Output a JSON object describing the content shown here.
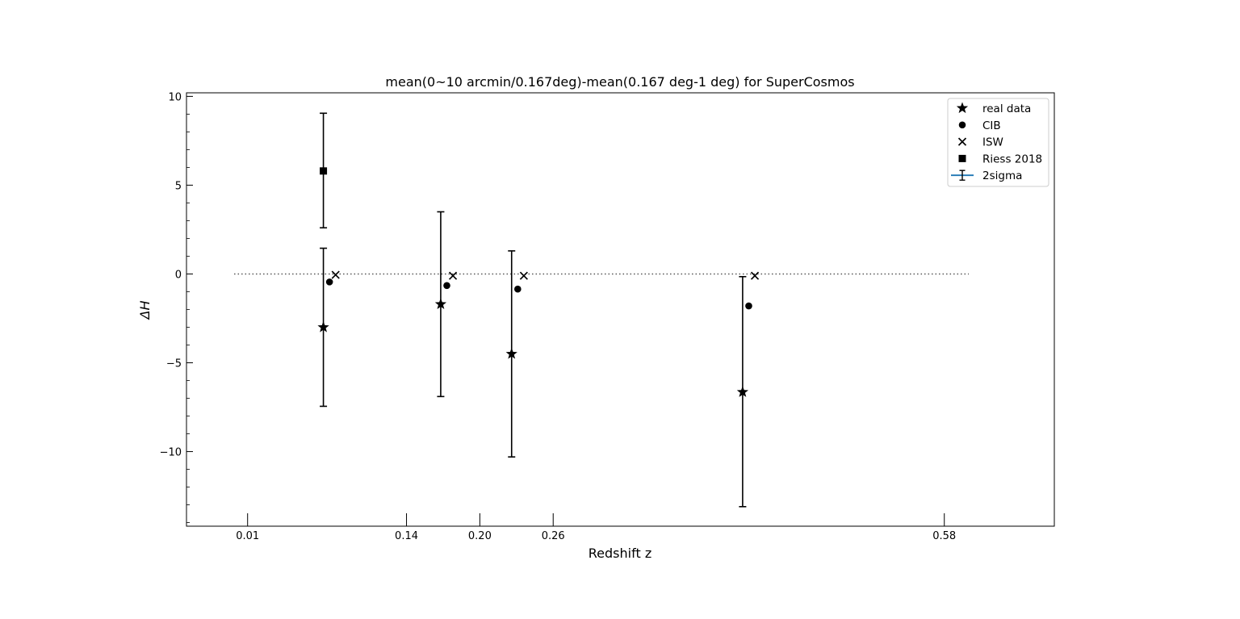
{
  "chart_data": {
    "type": "scatter",
    "title": "mean(0~10 arcmin/0.167deg)-mean(0.167 deg-1 deg) for SuperCosmos",
    "xlabel": "Redshift z",
    "ylabel": "ΔH",
    "xlim": [
      -0.04,
      0.67
    ],
    "ylim": [
      -14.2,
      10.2
    ],
    "xticks": [
      {
        "value": 0.01,
        "label": "0.01"
      },
      {
        "value": 0.14,
        "label": "0.14"
      },
      {
        "value": 0.2,
        "label": "0.20"
      },
      {
        "value": 0.26,
        "label": "0.26"
      },
      {
        "value": 0.58,
        "label": "0.58"
      }
    ],
    "yticks": [
      {
        "value": 10,
        "label": "10"
      },
      {
        "value": 5,
        "label": "5"
      },
      {
        "value": 0,
        "label": "0"
      },
      {
        "value": -5,
        "label": "−5"
      },
      {
        "value": -10,
        "label": "−10"
      }
    ],
    "reference_line": {
      "y": 0,
      "x_range": [
        -0.001,
        0.6
      ],
      "style": "dotted"
    },
    "legend_position": "top-right",
    "series": [
      {
        "name": "real data",
        "marker": "star",
        "points": [
          {
            "x": 0.072,
            "y": -3.0
          },
          {
            "x": 0.168,
            "y": -1.7
          },
          {
            "x": 0.226,
            "y": -4.5
          },
          {
            "x": 0.415,
            "y": -6.65
          }
        ]
      },
      {
        "name": "CIB",
        "marker": "circle",
        "points": [
          {
            "x": 0.077,
            "y": -0.45
          },
          {
            "x": 0.173,
            "y": -0.65
          },
          {
            "x": 0.231,
            "y": -0.85
          },
          {
            "x": 0.42,
            "y": -1.8
          }
        ]
      },
      {
        "name": "ISW",
        "marker": "x",
        "points": [
          {
            "x": 0.082,
            "y": -0.05
          },
          {
            "x": 0.178,
            "y": -0.1
          },
          {
            "x": 0.236,
            "y": -0.1
          },
          {
            "x": 0.425,
            "y": -0.1
          }
        ]
      },
      {
        "name": "Riess 2018",
        "marker": "square",
        "points": [
          {
            "x": 0.072,
            "y": 5.8
          }
        ]
      },
      {
        "name": "2sigma",
        "marker": "errorbar",
        "color": "#1f77b4",
        "bars": [
          {
            "x": 0.072,
            "low": 2.6,
            "high": 9.05
          },
          {
            "x": 0.072,
            "low": -7.45,
            "high": 1.45
          },
          {
            "x": 0.168,
            "low": -6.9,
            "high": 3.5
          },
          {
            "x": 0.226,
            "low": -10.3,
            "high": 1.3
          },
          {
            "x": 0.415,
            "low": -13.1,
            "high": -0.15
          }
        ]
      }
    ]
  }
}
